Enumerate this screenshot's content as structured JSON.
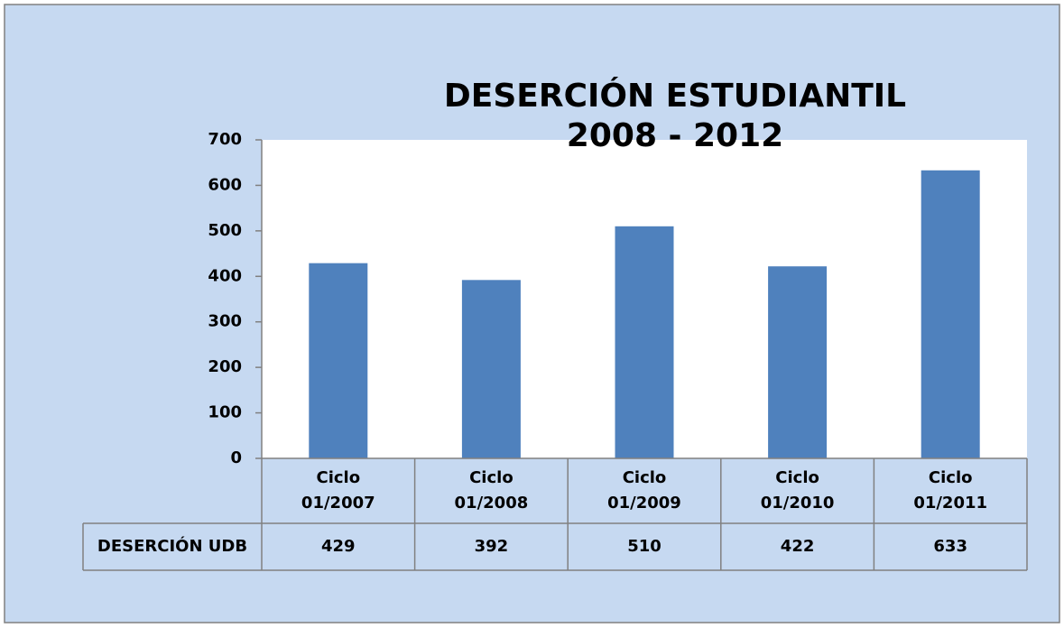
{
  "chart_data": {
    "type": "bar",
    "title": [
      "DESERCIÓN ESTUDIANTIL",
      "2008 - 2012"
    ],
    "categories": [
      "Ciclo 01/2007",
      "Ciclo 01/2008",
      "Ciclo 01/2009",
      "Ciclo 01/2010",
      "Ciclo 01/2011"
    ],
    "series": [
      {
        "name": "DESERCIÓN UDB",
        "color": "#4f81bd",
        "values": [
          429,
          392,
          510,
          422,
          633
        ]
      }
    ],
    "ylim": [
      0,
      700
    ],
    "yticks": [
      0,
      100,
      200,
      300,
      400,
      500,
      600,
      700
    ],
    "grid": false
  }
}
